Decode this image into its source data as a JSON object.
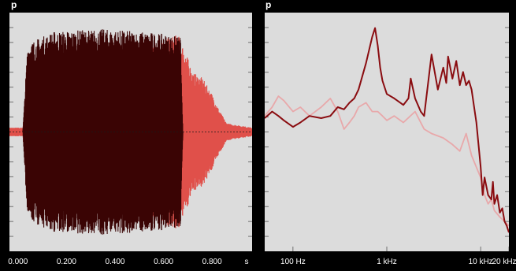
{
  "top_labels": {
    "left": "p",
    "right": "p"
  },
  "colors": {
    "background": "#000000",
    "panel": "#dcdcdc",
    "dark_signal": "#3a0404",
    "light_signal": "#e0504a",
    "spectrum_dark": "#8a0c10",
    "spectrum_light": "#e8a8aa"
  },
  "chart_data": [
    {
      "type": "area",
      "x_ticks": [
        "0.000",
        "0.200",
        "0.400",
        "0.600",
        "0.800"
      ],
      "x_unit": "s",
      "xlim": [
        -0.035,
        0.965
      ],
      "ylim": [
        -1,
        1
      ],
      "grid": false,
      "series": [
        {
          "color": "#e0504a",
          "envelope": [
            [
              -0.035,
              0.04
            ],
            [
              0.02,
              0.04
            ],
            [
              0.04,
              0.45
            ],
            [
              0.66,
              0.9
            ],
            [
              0.69,
              0.75
            ],
            [
              0.72,
              0.55
            ],
            [
              0.76,
              0.5
            ],
            [
              0.8,
              0.35
            ],
            [
              0.83,
              0.2
            ],
            [
              0.86,
              0.08
            ],
            [
              0.965,
              0.04
            ]
          ]
        },
        {
          "color": "#3a0404",
          "envelope": [
            [
              0.02,
              0.0
            ],
            [
              0.04,
              0.82
            ],
            [
              0.15,
              0.93
            ],
            [
              0.35,
              0.95
            ],
            [
              0.55,
              0.92
            ],
            [
              0.67,
              0.88
            ],
            [
              0.68,
              0.0
            ]
          ]
        }
      ]
    },
    {
      "type": "line",
      "x_scale": "log",
      "x_ticks": [
        "100 Hz",
        "1 kHz",
        "10 kHz",
        "20 kHz"
      ],
      "x_tick_values": [
        100,
        1000,
        10000,
        20000
      ],
      "xlim": [
        50,
        20000
      ],
      "ylim": [
        0,
        1
      ],
      "grid": false,
      "series": [
        {
          "color": "#e8a8aa",
          "x": [
            50,
            60,
            70,
            80,
            100,
            120,
            150,
            200,
            250,
            300,
            350,
            400,
            450,
            500,
            600,
            700,
            800,
            900,
            1000,
            1200,
            1500,
            2000,
            2500,
            3000,
            4000,
            5000,
            6000,
            7000,
            8000,
            10000,
            11000,
            12000,
            13000,
            14000,
            16000,
            18000,
            20000
          ],
          "y": [
            0.58,
            0.62,
            0.67,
            0.65,
            0.6,
            0.62,
            0.58,
            0.62,
            0.66,
            0.6,
            0.52,
            0.55,
            0.58,
            0.62,
            0.64,
            0.6,
            0.6,
            0.58,
            0.56,
            0.58,
            0.55,
            0.6,
            0.52,
            0.5,
            0.48,
            0.45,
            0.42,
            0.5,
            0.4,
            0.3,
            0.22,
            0.18,
            0.2,
            0.15,
            0.12,
            0.1,
            0.08
          ]
        },
        {
          "color": "#8a0c10",
          "x": [
            50,
            60,
            70,
            80,
            100,
            120,
            150,
            200,
            250,
            300,
            350,
            400,
            450,
            500,
            600,
            700,
            750,
            800,
            850,
            900,
            1000,
            1200,
            1500,
            1700,
            1800,
            2000,
            2300,
            2500,
            3000,
            3300,
            3500,
            4000,
            4300,
            4500,
            5000,
            5500,
            6000,
            6500,
            7000,
            7500,
            8000,
            9000,
            10000,
            10500,
            11000,
            12000,
            13000,
            13500,
            14000,
            15000,
            16000,
            17000,
            18000,
            19000,
            20000
          ],
          "y": [
            0.57,
            0.6,
            0.58,
            0.56,
            0.53,
            0.55,
            0.58,
            0.57,
            0.58,
            0.62,
            0.61,
            0.64,
            0.66,
            0.7,
            0.82,
            0.94,
            0.98,
            0.9,
            0.8,
            0.74,
            0.68,
            0.66,
            0.63,
            0.66,
            0.75,
            0.66,
            0.6,
            0.58,
            0.86,
            0.76,
            0.7,
            0.8,
            0.73,
            0.85,
            0.75,
            0.83,
            0.72,
            0.78,
            0.72,
            0.74,
            0.7,
            0.55,
            0.35,
            0.22,
            0.3,
            0.22,
            0.2,
            0.28,
            0.18,
            0.22,
            0.14,
            0.16,
            0.1,
            0.08,
            0.05
          ]
        }
      ]
    }
  ]
}
